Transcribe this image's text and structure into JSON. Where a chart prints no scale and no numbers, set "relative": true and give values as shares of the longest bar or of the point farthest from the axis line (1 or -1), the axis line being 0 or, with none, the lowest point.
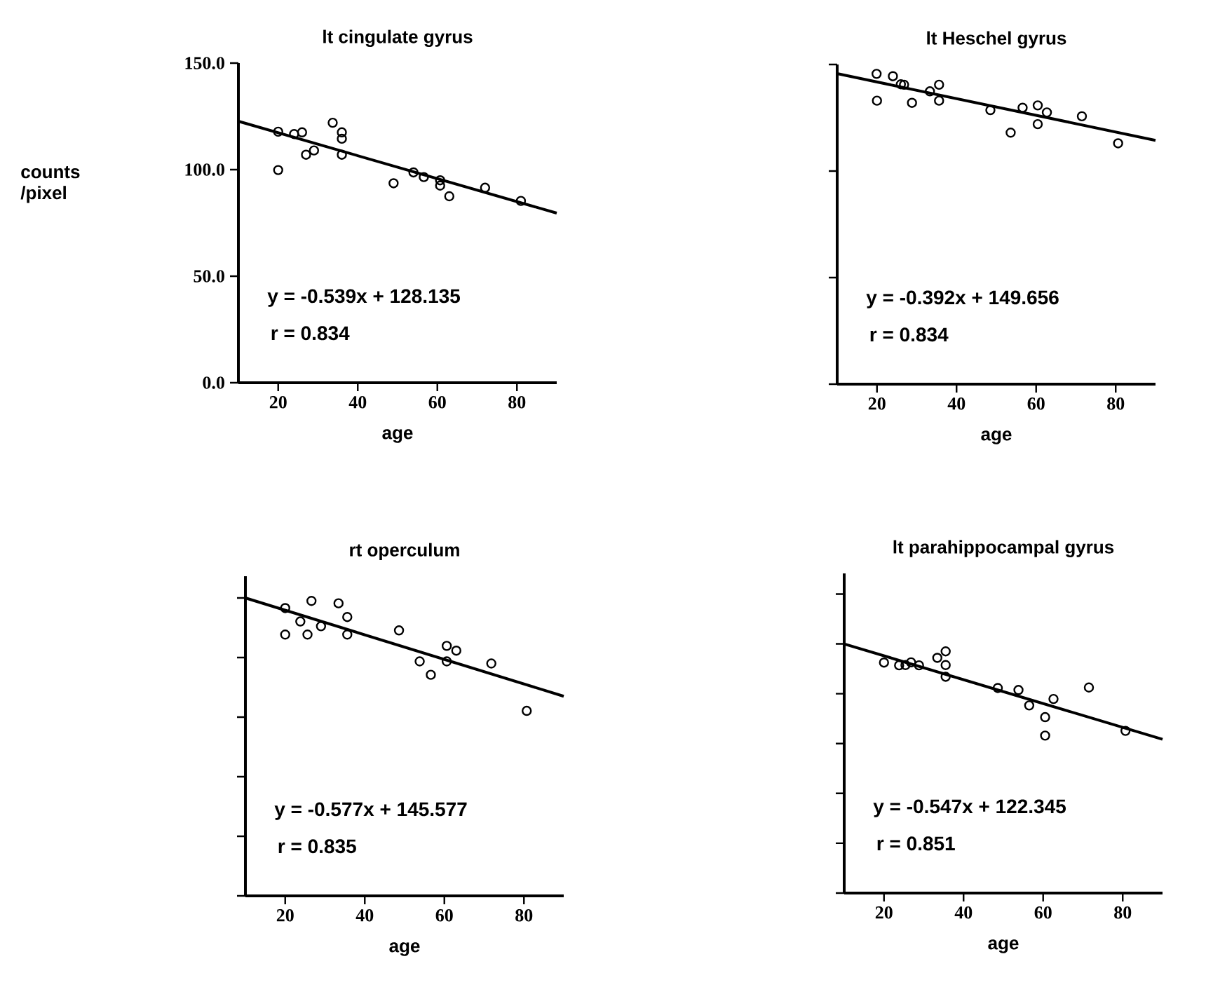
{
  "chart_data": [
    {
      "type": "scatter",
      "title": "lt cingulate gyrus",
      "xlabel": "age",
      "ylabel": "counts /pixel",
      "xlim": [
        10,
        90
      ],
      "ylim": [
        0,
        150
      ],
      "xticks": [
        20,
        40,
        60,
        80
      ],
      "yticks": [
        {
          "value": 0,
          "label": "0.0"
        },
        {
          "value": 50,
          "label": "50.0"
        },
        {
          "value": 100,
          "label": "100.0"
        },
        {
          "value": 150,
          "label": "150.0"
        }
      ],
      "annotations": [
        "y =  -0.539x + 128.135",
        "r = 0.834"
      ],
      "series": [
        {
          "type": "scatter",
          "color": "#000000",
          "marker": "circle",
          "x": [
            20,
            20,
            24,
            26,
            27,
            29,
            33.7,
            36,
            36,
            36,
            49,
            54,
            56.6,
            60.7,
            60.7,
            63,
            72,
            81
          ],
          "values": [
            117.8,
            99.8,
            116.7,
            117.5,
            107,
            109,
            122,
            117.5,
            114.5,
            107,
            93.6,
            98.7,
            96.5,
            95,
            92.5,
            87.5,
            91.5,
            85.3
          ]
        },
        {
          "type": "line",
          "color": "#000000",
          "marker": "none",
          "x": [
            10,
            90
          ],
          "values": [
            122.7,
            79.6
          ]
        }
      ]
    },
    {
      "type": "scatter",
      "title": "lt Heschel gyrus",
      "xlabel": "age",
      "xlim": [
        10,
        90
      ],
      "ylim": [
        0,
        150
      ],
      "xticks": [
        20,
        40,
        60,
        80
      ],
      "yticks": [
        {
          "value": 0,
          "label": null
        },
        {
          "value": 50,
          "label": null
        },
        {
          "value": 100,
          "label": null
        },
        {
          "value": 150,
          "label": null
        }
      ],
      "tick_labels": "x",
      "annotations": [
        "y =  -0.392x + 149.656",
        "r = 0.834"
      ],
      "series": [
        {
          "type": "scatter",
          "color": "#000000",
          "marker": "circle",
          "x": [
            19.9,
            20,
            24,
            26,
            26.8,
            28.8,
            33.3,
            35.6,
            35.6,
            48.5,
            53.6,
            56.6,
            60.4,
            60.4,
            62.7,
            71.5,
            80.6
          ],
          "values": [
            145.6,
            133,
            144.5,
            140.7,
            140.5,
            132,
            137.4,
            140.5,
            133,
            128.6,
            118,
            129.7,
            130.8,
            122,
            127.5,
            125.7,
            113
          ]
        },
        {
          "type": "line",
          "color": "#000000",
          "marker": "none",
          "x": [
            10,
            90
          ],
          "values": [
            145.7,
            114.4
          ]
        }
      ]
    },
    {
      "type": "scatter",
      "title": "rt operculum",
      "xlabel": "age",
      "xlim": [
        10,
        90
      ],
      "relative": true,
      "xticks": [
        20,
        40,
        60,
        80
      ],
      "tick_labels": "x",
      "annotations": [
        "y =  -0.577x + 145.577",
        "r = 0.835"
      ],
      "series": [
        {
          "type": "scatter",
          "color": "#000000",
          "marker": "circle",
          "x": [
            20,
            20,
            23.8,
            25.6,
            26.6,
            29,
            33.4,
            35.6,
            35.6,
            48.6,
            53.8,
            56.6,
            60.6,
            60.6,
            63,
            71.8,
            80.7
          ],
          "values": [
            0.966,
            0.877,
            0.921,
            0.877,
            0.99,
            0.905,
            0.982,
            0.936,
            0.877,
            0.891,
            0.787,
            0.742,
            0.839,
            0.787,
            0.823,
            0.78,
            0.621
          ]
        },
        {
          "type": "line",
          "color": "#000000",
          "marker": "none",
          "x": [
            10,
            90
          ],
          "values": [
            1,
            0.67
          ]
        }
      ]
    },
    {
      "type": "scatter",
      "title": "lt parahippocampal gyrus",
      "xlabel": "age",
      "xlim": [
        10,
        90
      ],
      "relative": true,
      "xticks": [
        20,
        40,
        60,
        80
      ],
      "tick_labels": "x",
      "annotations": [
        "y =  -0.547x + 122.345",
        "r = 0.851"
      ],
      "series": [
        {
          "type": "scatter",
          "color": "#000000",
          "marker": "circle",
          "x": [
            20,
            23.8,
            25.4,
            26.8,
            28.8,
            33.4,
            35.5,
            35.5,
            35.5,
            48.6,
            53.8,
            56.5,
            60.5,
            60.5,
            62.6,
            71.5,
            80.7
          ],
          "values": [
            0.925,
            0.914,
            0.915,
            0.926,
            0.914,
            0.944,
            0.97,
            0.915,
            0.868,
            0.823,
            0.815,
            0.753,
            0.706,
            0.632,
            0.779,
            0.825,
            0.651
          ]
        },
        {
          "type": "line",
          "color": "#000000",
          "marker": "none",
          "x": [
            10,
            90
          ],
          "values": [
            1,
            0.617
          ]
        }
      ]
    }
  ]
}
